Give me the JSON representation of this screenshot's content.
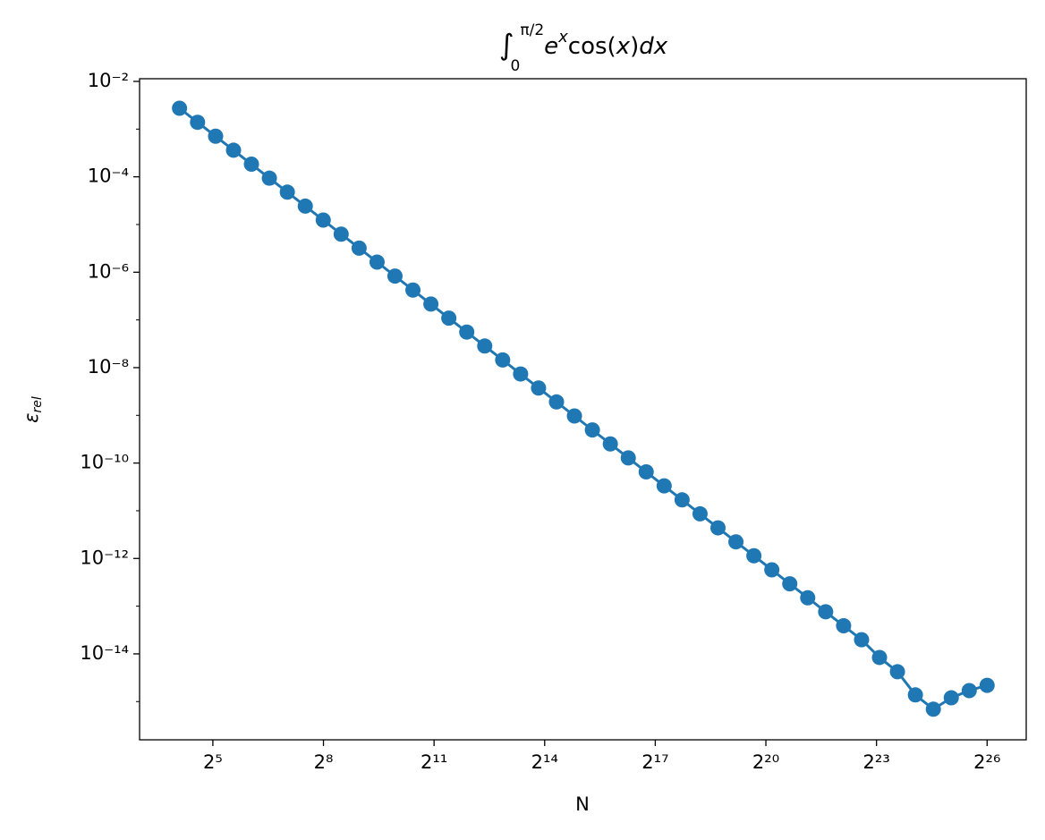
{
  "chart_data": {
    "type": "line",
    "title": {
      "integral": "∫",
      "lower": "0",
      "upper": "π/2",
      "base": "e",
      "power": "x",
      "rest": "cos(",
      "arg": "x",
      "close": ")",
      "d": "dx"
    },
    "x_label": "N",
    "y_label": {
      "symbol": "ε",
      "sub": "rel"
    },
    "xscale": "log",
    "xbase": 2,
    "yscale": "log",
    "xlim": [
      8.07,
      140000000
    ],
    "ylim": [
      0.01138,
      1.58e-16
    ],
    "xticks": [
      {
        "value": 32,
        "label": "2⁵"
      },
      {
        "value": 256,
        "label": "2⁸"
      },
      {
        "value": 2048,
        "label": "2¹¹"
      },
      {
        "value": 16384,
        "label": "2¹⁴"
      },
      {
        "value": 131072,
        "label": "2¹⁷"
      },
      {
        "value": 1048576,
        "label": "2²⁰"
      },
      {
        "value": 8388608,
        "label": "2²³"
      },
      {
        "value": 67108864,
        "label": "2²⁶"
      }
    ],
    "yticks": [
      {
        "value": 0.01,
        "label": "10⁻²"
      },
      {
        "value": 0.0001,
        "label": "10⁻⁴"
      },
      {
        "value": 1e-06,
        "label": "10⁻⁶"
      },
      {
        "value": 1e-08,
        "label": "10⁻⁸"
      },
      {
        "value": 1e-10,
        "label": "10⁻¹⁰"
      },
      {
        "value": 1e-12,
        "label": "10⁻¹²"
      },
      {
        "value": 1e-14,
        "label": "10⁻¹⁴"
      }
    ],
    "yminorticks": [
      0.001,
      1e-05,
      1e-07,
      1e-09,
      1e-11,
      1e-13,
      1e-15
    ],
    "x": [
      17.1,
      24.0,
      33.7,
      47.2,
      66.1,
      92.6,
      129.8,
      181.9,
      254.9,
      357.1,
      500.4,
      701.4,
      982.4,
      1376.7,
      1929.5,
      2702.4,
      3787,
      5308,
      7439,
      10420,
      14600,
      20460,
      28670,
      40170,
      56300,
      78900,
      110500,
      154900,
      217000,
      304100,
      426200,
      597200,
      836800,
      1172600,
      1643000,
      2302000,
      3226000,
      4521000,
      6336000,
      8876000,
      12440000,
      17430000,
      24420000,
      34230000,
      47970000,
      67108864
    ],
    "series": [
      {
        "color": "#1f77b4",
        "values": [
          0.00274,
          0.00139,
          0.00071,
          0.000361,
          0.000184,
          9.36e-05,
          4.77e-05,
          2.43e-05,
          1.24e-05,
          6.29e-06,
          3.2e-06,
          1.63e-06,
          8.3e-07,
          4.23e-07,
          2.15e-07,
          1.09e-07,
          5.57e-08,
          2.84e-08,
          1.45e-08,
          7.36e-09,
          3.74e-09,
          1.91e-09,
          9.7e-10,
          4.94e-10,
          2.52e-10,
          1.28e-10,
          6.52e-11,
          3.32e-11,
          1.69e-11,
          8.61e-12,
          4.38e-12,
          2.23e-12,
          1.14e-12,
          5.78e-13,
          2.94e-13,
          1.5e-13,
          7.62e-14,
          3.88e-14,
          1.98e-14,
          8.41e-15,
          4.22e-15,
          1.38e-15,
          6.92e-16,
          1.2e-15,
          1.7e-15,
          2.19e-15
        ]
      }
    ]
  }
}
